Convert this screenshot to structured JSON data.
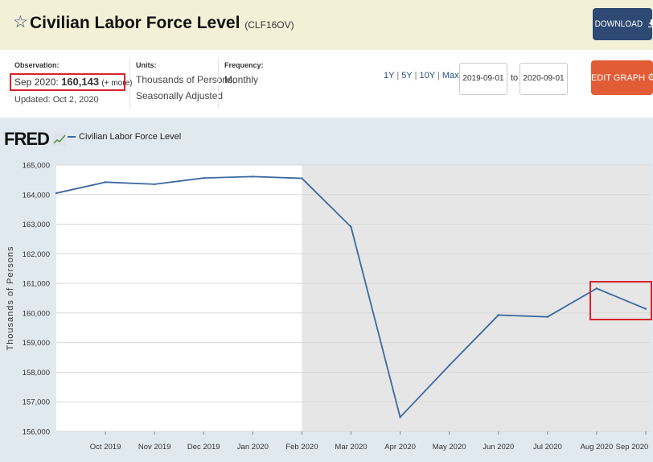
{
  "header": {
    "star_icon": "star-outline-icon",
    "title": "Civilian Labor Force Level",
    "series_id": "(CLF16OV)",
    "download_label": "DOWNLOAD",
    "download_icon": "download-icon"
  },
  "meta": {
    "observation_label": "Observation:",
    "observation_date": "Sep 2020:",
    "observation_value": "160,143",
    "observation_more": "(+ more)",
    "updated": "Updated: Oct 2, 2020",
    "units_label": "Units:",
    "units_line1": "Thousands of Persons,",
    "units_line2": "Seasonally Adjusted",
    "frequency_label": "Frequency:",
    "frequency_value": "Monthly",
    "range_options": [
      "1Y",
      "5Y",
      "10Y",
      "Max"
    ],
    "date_from": "2019-09-01",
    "date_to_label": "to",
    "date_to": "2020-09-01",
    "edit_label": "EDIT GRAPH",
    "edit_icon": "gear-icon"
  },
  "colors": {
    "header_bg": "#f2f0d7",
    "download_bg": "#2e4a74",
    "edit_bg": "#e25c36",
    "line": "#3a69a1",
    "recession_shade": "#e6e6e6",
    "highlight": "#d9232d"
  },
  "chart_data": {
    "type": "line",
    "logo": "FRED",
    "legend": [
      "Civilian Labor Force Level"
    ],
    "ylabel": "Thousands of Persons",
    "ylim": [
      156000,
      165000
    ],
    "yticks": [
      "156,000",
      "157,000",
      "158,000",
      "159,000",
      "160,000",
      "161,000",
      "162,000",
      "163,000",
      "164,000",
      "165,000"
    ],
    "ytick_values": [
      156000,
      157000,
      158000,
      159000,
      160000,
      161000,
      162000,
      163000,
      164000,
      165000
    ],
    "x": [
      "Sep 2019",
      "Oct 2019",
      "Nov 2019",
      "Dec 2019",
      "Jan 2020",
      "Feb 2020",
      "Mar 2020",
      "Apr 2020",
      "May 2020",
      "Jun 2020",
      "Jul 2020",
      "Aug 2020",
      "Sep 2020"
    ],
    "xticks": [
      "Oct 2019",
      "Nov 2019",
      "Dec 2019",
      "Jan 2020",
      "Feb 2020",
      "Mar 2020",
      "Apr 2020",
      "May 2020",
      "Jun 2020",
      "Jul 2020",
      "Aug 2020",
      "Sep 2020"
    ],
    "series": [
      {
        "values": [
          164050,
          164420,
          164350,
          164560,
          164610,
          164550,
          162910,
          156480,
          158230,
          159930,
          159870,
          160830,
          160140
        ]
      }
    ],
    "shaded_region": [
      "Feb 2020",
      "Sep 2020"
    ],
    "grid": true
  }
}
